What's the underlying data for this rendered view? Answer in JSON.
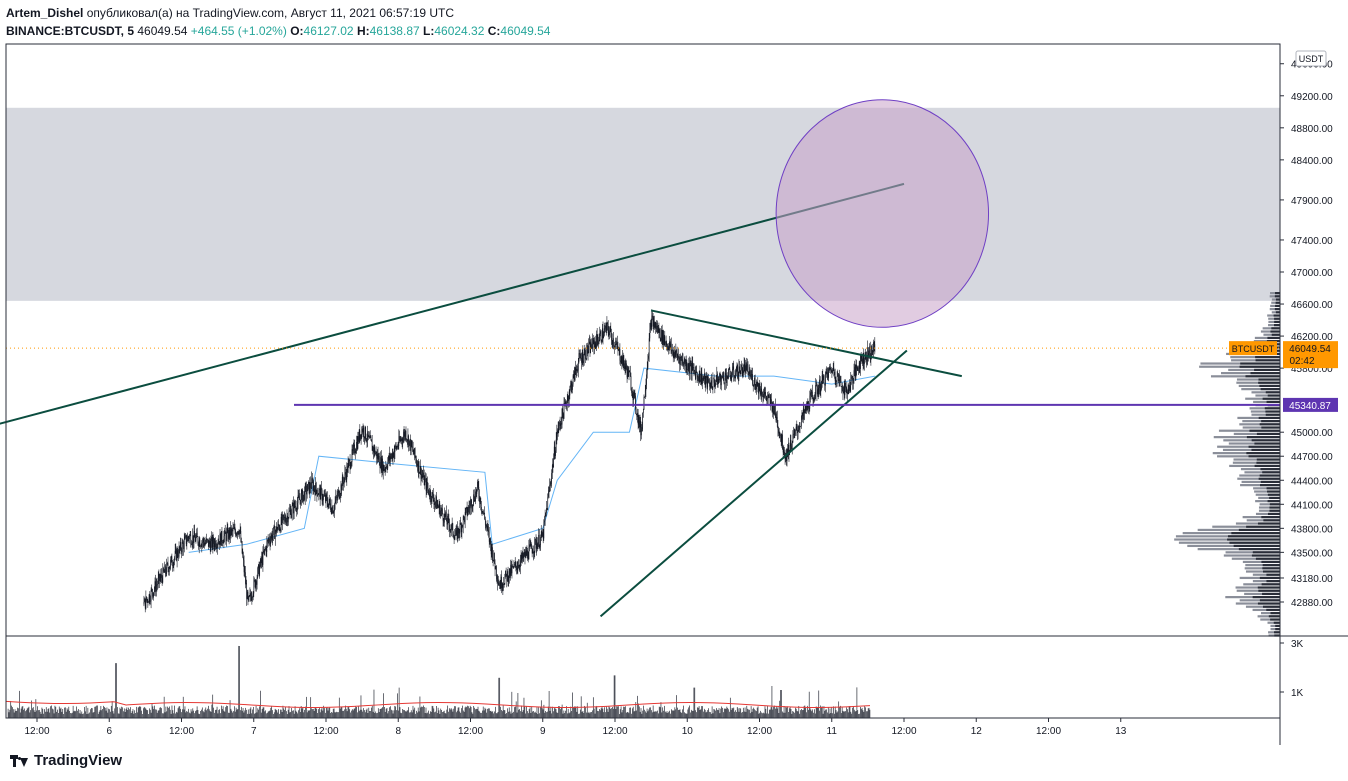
{
  "header": {
    "author": "Artem_Dishel",
    "published_text": "опубликовал(а) на TradingView.com, Август 11, 2021 06:57:19 UTC",
    "symbol": "BINANCE:BTCUSDT, 5",
    "last": "46049.54",
    "change": "+464.55 (+1.02%)",
    "o_label": "O:",
    "o_value": "46127.02",
    "h_label": "H:",
    "h_value": "46138.87",
    "l_label": "L:",
    "l_value": "46024.32",
    "c_label": "C:",
    "c_value": "46049.54"
  },
  "currency_badge": "USDT",
  "footer": {
    "logo_text": "TradingView"
  },
  "colors": {
    "candle": "#131722",
    "vwap": "#64b5f6",
    "trendline": "#0b4d3f",
    "level": "#5e35b1",
    "zone": "#d1d4dc",
    "circle_fill": "#c8a2c8",
    "circle_stroke": "#6f3fc4",
    "price_tag": "#ff9800",
    "volume_ma": "#e53935",
    "last_price_line": "#ff9800"
  },
  "chart_data": {
    "type": "candlestick",
    "price_axis_ticks": [
      "49600.00",
      "49200.00",
      "48800.00",
      "48400.00",
      "47900.00",
      "47400.00",
      "47000.00",
      "46600.00",
      "46200.00",
      "45800.00",
      "45000.00",
      "44700.00",
      "44400.00",
      "44100.00",
      "43800.00",
      "43500.00",
      "43180.00",
      "42880.00"
    ],
    "time_axis_ticks": [
      "12:00",
      "6",
      "12:00",
      "7",
      "12:00",
      "8",
      "12:00",
      "9",
      "12:00",
      "10",
      "12:00",
      "11",
      "12:00",
      "12",
      "12:00",
      "13"
    ],
    "volume_axis_ticks": [
      "3K",
      "1K"
    ],
    "last_price": {
      "symbol": "BTCUSDT",
      "price": "46049.54",
      "countdown": "02:42",
      "value": 46049.54
    },
    "horizontal_level": {
      "label": "45340.87",
      "value": 45340.87
    },
    "supply_zone": {
      "from": 46640,
      "to": 49050
    },
    "trendlines": [
      {
        "name": "long-rising",
        "from": {
          "time": 5.0,
          "price": 44990
        },
        "to": {
          "time": 11.5,
          "price": 48100
        }
      },
      {
        "name": "descending-upper",
        "from": {
          "time": 9.75,
          "price": 46520
        },
        "to": {
          "time": 11.9,
          "price": 45700
        }
      },
      {
        "name": "ascending-lower",
        "from": {
          "time": 9.4,
          "price": 42700
        },
        "to": {
          "time": 11.52,
          "price": 46020
        }
      }
    ],
    "ellipse": {
      "center_time": 11.35,
      "center_price": 47730,
      "radius_time": 0.735,
      "radius_price": 1420
    },
    "price_path": [
      {
        "t": 6.24,
        "p": 42850
      },
      {
        "t": 6.4,
        "p": 43300
      },
      {
        "t": 6.55,
        "p": 43700
      },
      {
        "t": 6.7,
        "p": 43600
      },
      {
        "t": 6.9,
        "p": 43800
      },
      {
        "t": 6.96,
        "p": 42850
      },
      {
        "t": 7.1,
        "p": 43650
      },
      {
        "t": 7.4,
        "p": 44350
      },
      {
        "t": 7.55,
        "p": 44050
      },
      {
        "t": 7.75,
        "p": 45050
      },
      {
        "t": 7.9,
        "p": 44550
      },
      {
        "t": 8.05,
        "p": 45000
      },
      {
        "t": 8.2,
        "p": 44300
      },
      {
        "t": 8.4,
        "p": 43700
      },
      {
        "t": 8.55,
        "p": 44300
      },
      {
        "t": 8.65,
        "p": 43500
      },
      {
        "t": 8.7,
        "p": 43100
      },
      {
        "t": 8.9,
        "p": 43500
      },
      {
        "t": 9.0,
        "p": 43700
      },
      {
        "t": 9.1,
        "p": 45000
      },
      {
        "t": 9.25,
        "p": 45900
      },
      {
        "t": 9.45,
        "p": 46300
      },
      {
        "t": 9.6,
        "p": 45700
      },
      {
        "t": 9.68,
        "p": 45000
      },
      {
        "t": 9.75,
        "p": 46400
      },
      {
        "t": 9.9,
        "p": 46000
      },
      {
        "t": 10.15,
        "p": 45600
      },
      {
        "t": 10.4,
        "p": 45800
      },
      {
        "t": 10.6,
        "p": 45300
      },
      {
        "t": 10.68,
        "p": 44700
      },
      {
        "t": 10.85,
        "p": 45400
      },
      {
        "t": 11.0,
        "p": 45800
      },
      {
        "t": 11.1,
        "p": 45500
      },
      {
        "t": 11.2,
        "p": 45900
      },
      {
        "t": 11.3,
        "p": 46050
      }
    ],
    "vwap_path": [
      {
        "t": 6.55,
        "p": 43500
      },
      {
        "t": 6.95,
        "p": 43600
      },
      {
        "t": 7.35,
        "p": 43800
      },
      {
        "t": 7.45,
        "p": 44700
      },
      {
        "t": 8.0,
        "p": 44600
      },
      {
        "t": 8.6,
        "p": 44500
      },
      {
        "t": 8.65,
        "p": 43600
      },
      {
        "t": 9.0,
        "p": 43800
      },
      {
        "t": 9.1,
        "p": 44400
      },
      {
        "t": 9.35,
        "p": 45000
      },
      {
        "t": 9.6,
        "p": 45000
      },
      {
        "t": 9.7,
        "p": 45800
      },
      {
        "t": 10.2,
        "p": 45700
      },
      {
        "t": 10.6,
        "p": 45700
      },
      {
        "t": 11.0,
        "p": 45600
      },
      {
        "t": 11.3,
        "p": 45700
      }
    ],
    "volume_spikes": [
      {
        "t": 6.05,
        "v": 2200
      },
      {
        "t": 6.9,
        "v": 2900
      },
      {
        "t": 8.7,
        "v": 1600
      },
      {
        "t": 9.5,
        "v": 1700
      },
      {
        "t": 10.05,
        "v": 1200
      },
      {
        "t": 10.65,
        "v": 1100
      },
      {
        "t": 11.3,
        "v": 400
      }
    ]
  }
}
